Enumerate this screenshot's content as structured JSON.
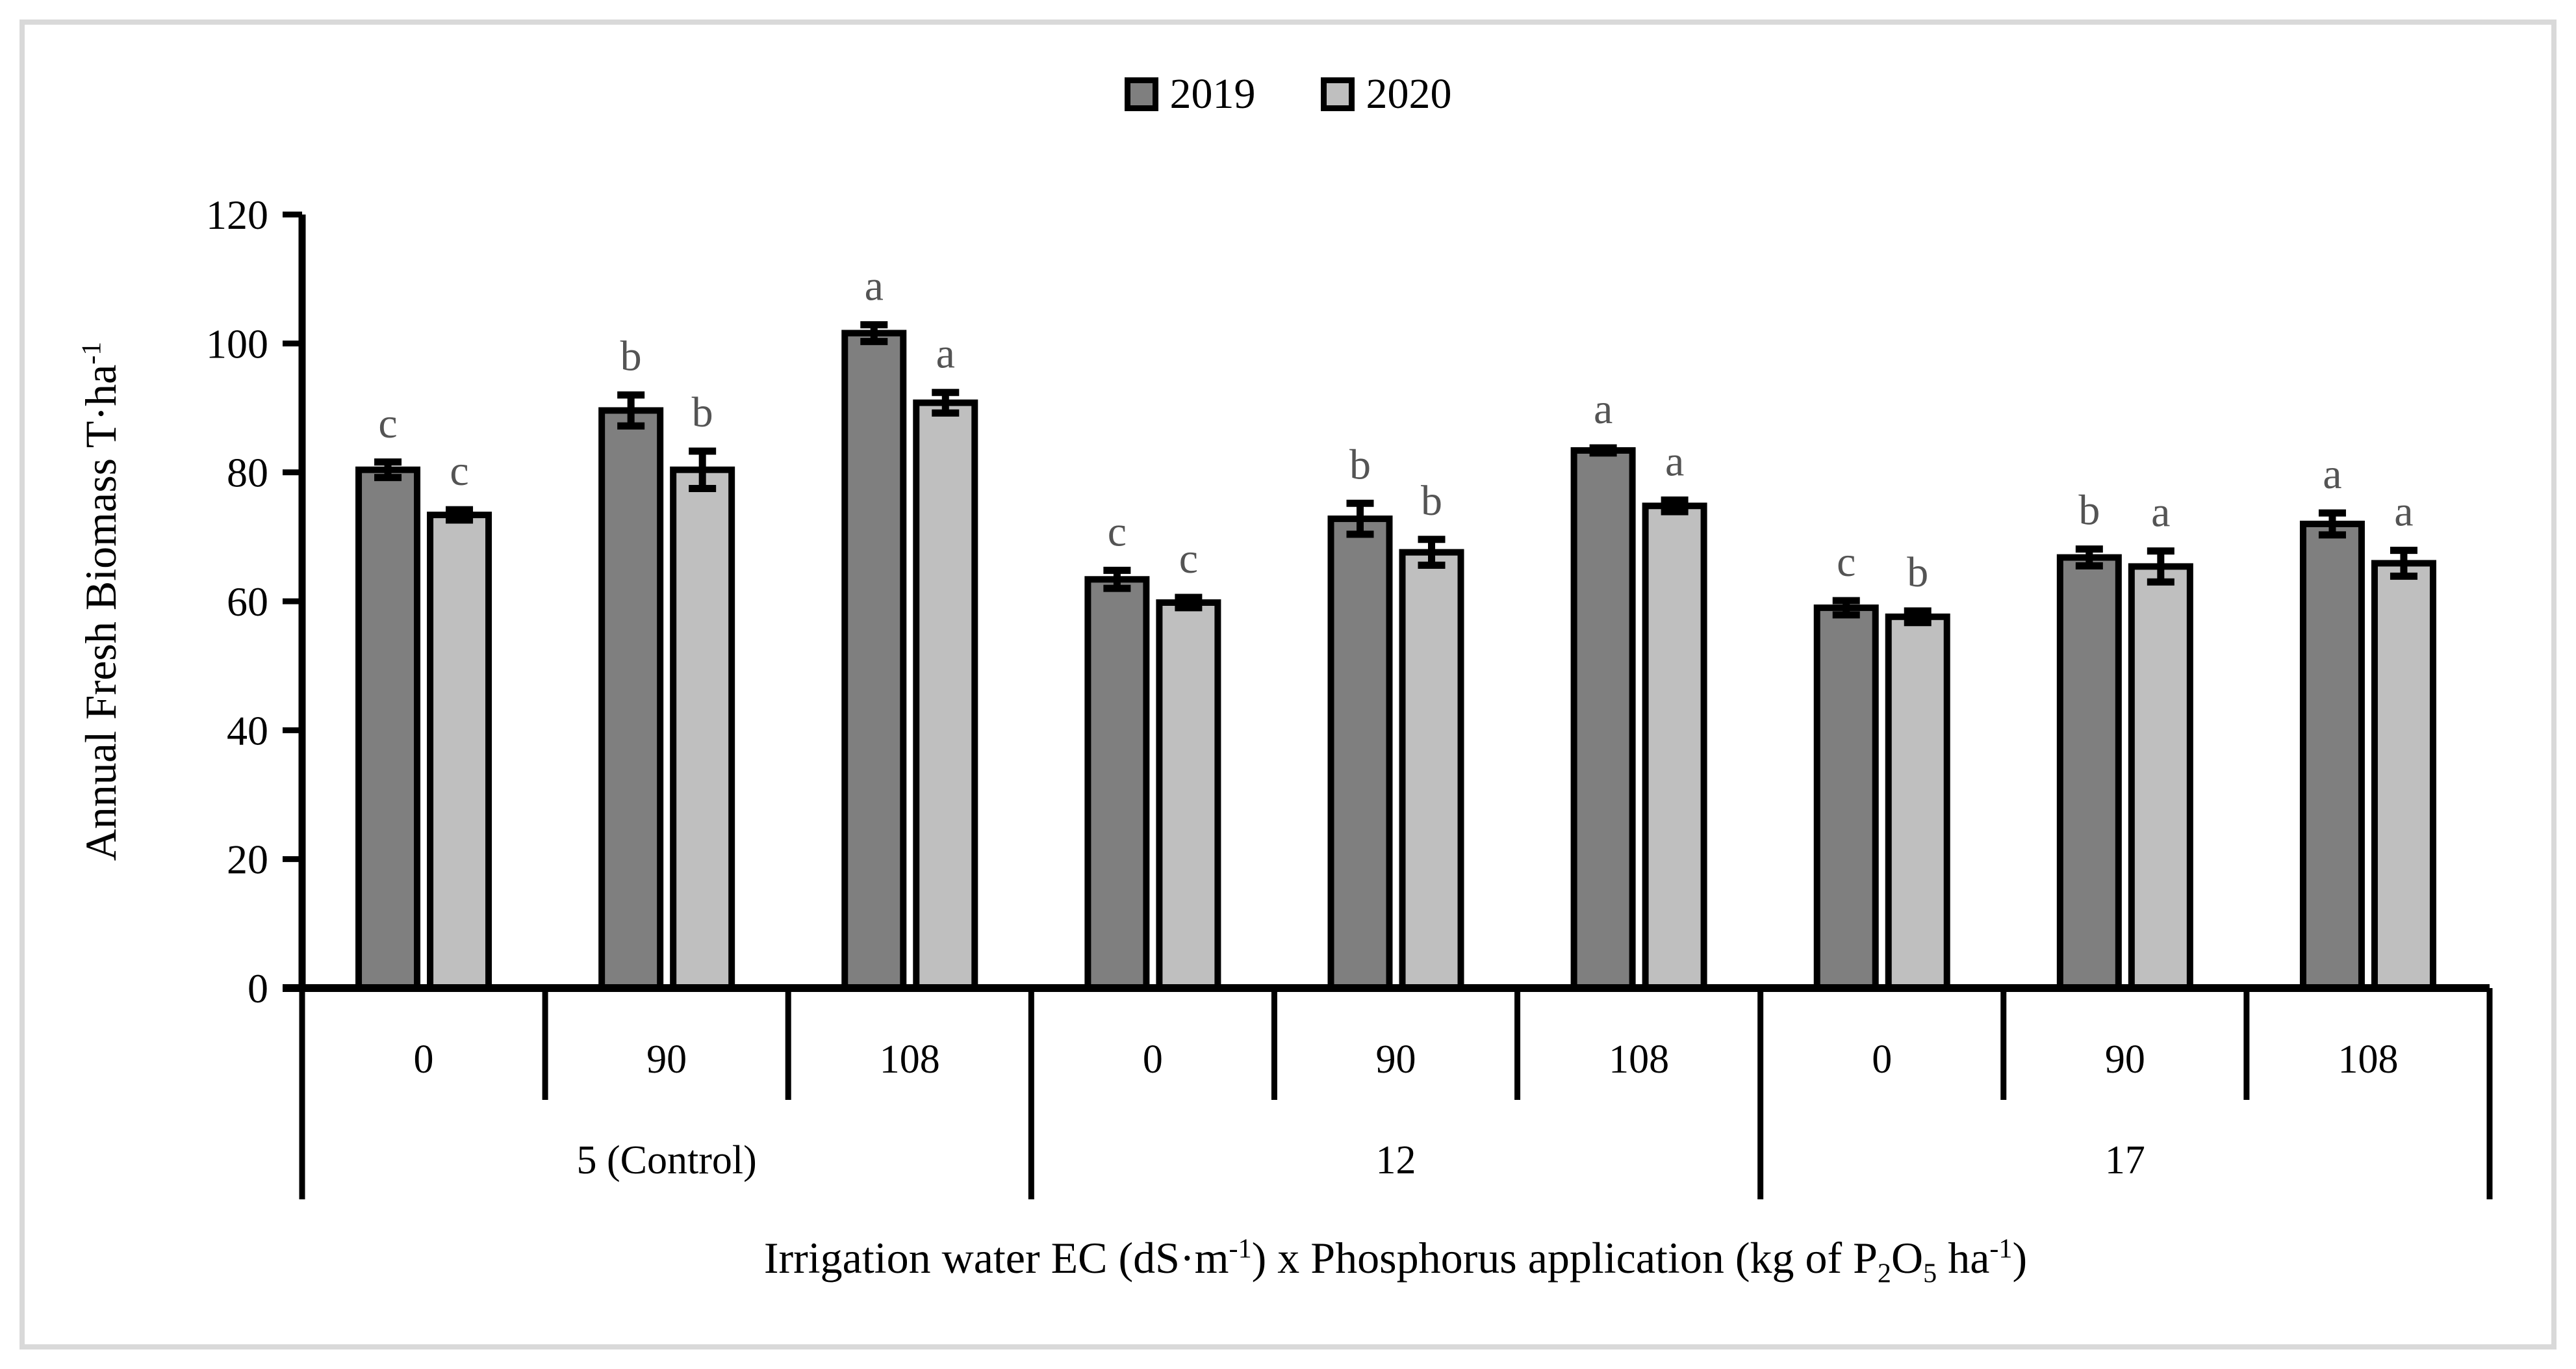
{
  "figure": {
    "frame_color": "#d9d9d9",
    "background_color": "#ffffff",
    "bar_border_color": "#000000",
    "error_bar_color": "#000000",
    "significance_letter_color": "#545454"
  },
  "chart_data": {
    "type": "bar",
    "title": "",
    "ylabel": "Annual Fresh Biomass T·ha⁻¹",
    "ylabel_segments": [
      {
        "t": "Annual Fresh Biomass T·ha"
      },
      {
        "t": "-1",
        "s": "sup"
      }
    ],
    "xlabel": "Irrigation water EC (dS·m⁻¹) x Phosphorus application (kg of P₂O₅ ha⁻¹)",
    "xlabel_segments": [
      {
        "t": "Irrigation water EC (dS·m"
      },
      {
        "t": "-1",
        "s": "sup"
      },
      {
        "t": ") x Phosphorus application (kg of P"
      },
      {
        "t": "2",
        "s": "sub"
      },
      {
        "t": "O"
      },
      {
        "t": "5",
        "s": "sub"
      },
      {
        "t": " ha"
      },
      {
        "t": "-1",
        "s": "sup"
      },
      {
        "t": ")"
      }
    ],
    "ylim": [
      0,
      120
    ],
    "yticks": [
      0,
      20,
      40,
      60,
      80,
      100,
      120
    ],
    "legend_position": "top-center",
    "grid": false,
    "groups": [
      {
        "label": "5 (Control)",
        "categories": [
          "0",
          "90",
          "108"
        ]
      },
      {
        "label": "12",
        "categories": [
          "0",
          "90",
          "108"
        ]
      },
      {
        "label": "17",
        "categories": [
          "0",
          "90",
          "108"
        ]
      }
    ],
    "series": [
      {
        "name": "2019",
        "color": "#7f7f7f",
        "values": [
          [
            80.4,
            89.6,
            101.6
          ],
          [
            63.4,
            72.8,
            83.4
          ],
          [
            59.0,
            66.8,
            72.0
          ]
        ],
        "errors": [
          [
            1.2,
            2.4,
            1.3
          ],
          [
            1.4,
            2.4,
            0.4
          ],
          [
            1.1,
            1.3,
            1.7
          ]
        ],
        "letters": [
          [
            "c",
            "b",
            "a"
          ],
          [
            "c",
            "b",
            "a"
          ],
          [
            "c",
            "b",
            "a"
          ]
        ]
      },
      {
        "name": "2020",
        "color": "#bfbfbf",
        "values": [
          [
            73.4,
            80.4,
            90.8
          ],
          [
            59.8,
            67.6,
            74.8
          ],
          [
            57.6,
            65.4,
            65.9
          ]
        ],
        "errors": [
          [
            0.8,
            2.9,
            1.6
          ],
          [
            0.8,
            2.0,
            0.9
          ],
          [
            0.9,
            2.4,
            2.0
          ]
        ],
        "letters": [
          [
            "c",
            "b",
            "a"
          ],
          [
            "c",
            "b",
            "a"
          ],
          [
            "b",
            "a",
            "a"
          ]
        ]
      }
    ]
  }
}
